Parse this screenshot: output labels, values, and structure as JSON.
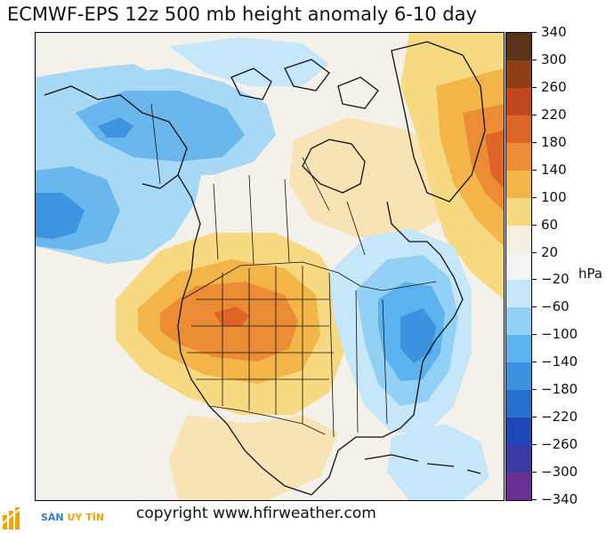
{
  "title": "ECMWF-EPS 12z 500 mb height anomaly 6-10 day",
  "unit": "hPa",
  "copyright": "copyright www.hfirweather.com",
  "logo": {
    "text_first": "SÀN",
    "text_second": "UY TÍN",
    "primary_color": "#2d7fc7",
    "secondary_color": "#f4a300"
  },
  "colorbar": {
    "ticks": [
      "340",
      "300",
      "260",
      "220",
      "180",
      "140",
      "100",
      "60",
      "20",
      "−20",
      "−60",
      "−100",
      "−140",
      "−180",
      "−220",
      "−260",
      "−300",
      "−340"
    ],
    "colors": [
      "#5a3318",
      "#8c3f14",
      "#c4461e",
      "#df6427",
      "#ec8d35",
      "#f3b448",
      "#f7d981",
      "#f4efe0",
      "#f4f4f4",
      "#c6e6f9",
      "#93d0f5",
      "#5ab3ef",
      "#3b93e0",
      "#2770cc",
      "#1f47b7",
      "#3a3aa2",
      "#6a2f95"
    ]
  },
  "map": {
    "background_color": "#f4f1ea",
    "region": "North America",
    "anomaly_features": [
      {
        "label": "western-trough",
        "sign": "negative",
        "color": "#7cc0ef"
      },
      {
        "label": "alaska-trough",
        "sign": "negative",
        "color": "#6ab7ee"
      },
      {
        "label": "rockies-ridge",
        "sign": "positive",
        "color": "#e57a2e"
      },
      {
        "label": "east-coast-trough",
        "sign": "negative",
        "color": "#3d95e1"
      },
      {
        "label": "greenland-ridge",
        "sign": "positive",
        "color": "#e06428"
      },
      {
        "label": "southeast-ridge",
        "sign": "positive",
        "color": "#f3c15d"
      }
    ]
  }
}
